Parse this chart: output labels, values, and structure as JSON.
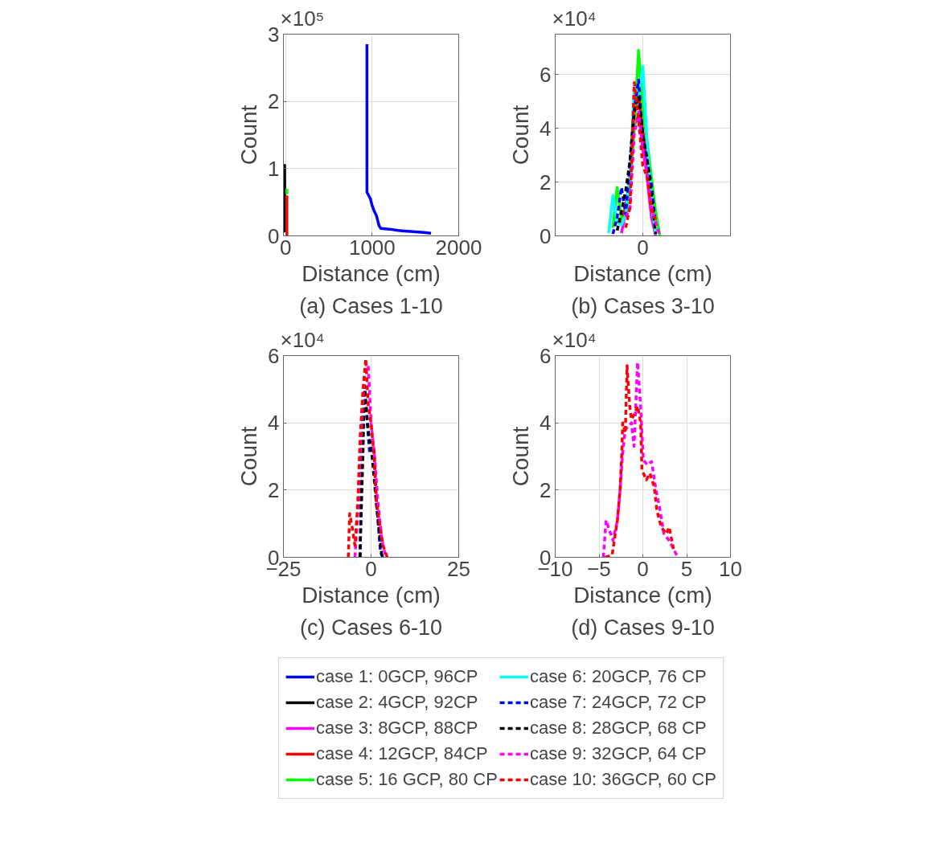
{
  "chart_data": [
    {
      "type": "line",
      "title": "(a) Cases 1-10",
      "xlabel": "Distance (cm)",
      "ylabel": "Count",
      "annotations": [
        "×10⁵"
      ],
      "xlim": [
        -25,
        2000
      ],
      "xticks": [
        0,
        1000,
        2000
      ],
      "ylim": [
        0,
        3
      ],
      "yticks": [
        0,
        1,
        2,
        3
      ],
      "grid": true,
      "legend": "bottom",
      "series": [
        {
          "name": "case 1: 0GCP, 96CP",
          "color": "#0000ff",
          "line_style": "solid",
          "x": [
            940,
            940,
            960,
            980,
            1000,
            1020,
            1050,
            1080,
            1100,
            1200,
            1300,
            1400,
            1500,
            1600,
            1680
          ],
          "values": [
            2.85,
            0.65,
            0.6,
            0.55,
            0.45,
            0.38,
            0.3,
            0.15,
            0.11,
            0.1,
            0.08,
            0.07,
            0.06,
            0.05,
            0.04
          ]
        },
        {
          "name": "case 2: 4GCP, 92CP",
          "color": "#000000",
          "line_style": "solid",
          "x": [
            -14,
            -13,
            -12,
            -11,
            -10
          ],
          "values": [
            0.05,
            0.65,
            0.2,
            1.05,
            0.6
          ]
        },
        {
          "name": "case 4: 12GCP, 84CP",
          "color": "#ff0000",
          "line_style": "solid",
          "x": [
            15,
            15
          ],
          "values": [
            0,
            0.6
          ]
        },
        {
          "name": "case 5: 16 GCP, 80 CP",
          "color": "#00ff00",
          "line_style": "solid",
          "x": [
            15,
            15
          ],
          "values": [
            0.62,
            0.7
          ]
        }
      ]
    },
    {
      "type": "line",
      "title": "(b) Cases 3-10",
      "xlabel": "Distance (cm)",
      "ylabel": "Count",
      "annotations": [
        "×10⁴"
      ],
      "categories": [
        null,
        null,
        null,
        null,
        null,
        null,
        null,
        null,
        null,
        null,
        null,
        null,
        null,
        null,
        null,
        null,
        null,
        null,
        null,
        null,
        "0",
        null,
        null,
        null,
        null,
        null,
        null,
        null,
        null,
        null,
        null,
        null,
        null,
        null,
        null,
        null,
        null,
        null,
        null,
        null,
        null
      ],
      "ylim": [
        0,
        7.5
      ],
      "yticks": [
        0,
        2,
        4,
        6
      ],
      "grid": true,
      "legend": "bottom",
      "series": [
        {
          "name": "case 3: 8GCP, 88CP",
          "color": "#ff00ff",
          "line_style": "solid",
          "values": [
            null,
            null,
            null,
            null,
            null,
            null,
            null,
            null,
            null,
            null,
            null,
            null,
            null,
            null,
            null,
            0.1,
            0.9,
            2.2,
            4.1,
            4.5,
            3.6,
            2.2,
            0.7,
            0,
            null,
            null,
            null,
            null,
            null,
            null,
            null,
            null,
            null,
            null,
            null,
            null,
            null,
            null,
            null,
            null,
            null
          ]
        },
        {
          "name": "case 4: 12GCP, 84CP",
          "color": "#ff0000",
          "line_style": "solid",
          "values": [
            null,
            null,
            null,
            null,
            null,
            null,
            null,
            null,
            null,
            null,
            null,
            null,
            null,
            null,
            0.6,
            0.5,
            1.1,
            2.2,
            4.6,
            5.3,
            3.9,
            2.9,
            1.3,
            0.1,
            null,
            null,
            null,
            null,
            null,
            null,
            null,
            null,
            null,
            null,
            null,
            null,
            null,
            null,
            null,
            null,
            null
          ]
        },
        {
          "name": "case 5: 16 GCP, 80 CP",
          "color": "#00ff00",
          "line_style": "solid",
          "values": [
            null,
            null,
            null,
            null,
            null,
            null,
            null,
            null,
            null,
            null,
            null,
            null,
            null,
            0.3,
            1.8,
            0.6,
            0.75,
            1.8,
            4.0,
            6.9,
            4.7,
            3.5,
            2.2,
            0.9,
            0,
            null,
            null,
            null,
            null,
            null,
            null,
            null,
            null,
            null,
            null,
            null,
            null,
            null,
            null,
            null,
            null
          ]
        },
        {
          "name": "case 6: 20GCP, 76 CP",
          "color": "#00ffff",
          "line_style": "solid",
          "values": [
            null,
            null,
            null,
            null,
            null,
            null,
            null,
            null,
            null,
            null,
            null,
            null,
            0.1,
            1.5,
            0.5,
            0.4,
            0.8,
            2.4,
            5.5,
            5.2,
            6.3,
            3.5,
            1.2,
            0.07,
            null,
            null,
            null,
            null,
            null,
            null,
            null,
            null,
            null,
            null,
            null,
            null,
            null,
            null,
            null,
            null,
            null
          ]
        },
        {
          "name": "case 7: 24GCP, 72 CP",
          "color": "#0000ff",
          "line_style": "dashed",
          "values": [
            null,
            null,
            null,
            null,
            null,
            null,
            null,
            null,
            null,
            null,
            null,
            null,
            null,
            0.07,
            0.7,
            1.8,
            0.8,
            2.8,
            4.7,
            5.8,
            3.6,
            2.8,
            1.9,
            0.4,
            null,
            null,
            null,
            null,
            null,
            null,
            null,
            null,
            null,
            null,
            null,
            null,
            null,
            null,
            null,
            null,
            null
          ]
        },
        {
          "name": "case 8: 28GCP, 68 CP",
          "color": "#000000",
          "line_style": "dashed",
          "values": [
            null,
            null,
            null,
            null,
            null,
            null,
            null,
            null,
            null,
            null,
            null,
            null,
            null,
            null,
            0.2,
            0.9,
            1.7,
            2.8,
            4.6,
            5.2,
            3.7,
            2.9,
            1.5,
            0.07,
            null,
            null,
            null,
            null,
            null,
            null,
            null,
            null,
            null,
            null,
            null,
            null,
            null,
            null,
            null,
            null,
            null
          ]
        },
        {
          "name": "case 9: 32GCP, 64 CP",
          "color": "#ff00ff",
          "line_style": "dashed",
          "values": [
            null,
            null,
            null,
            null,
            null,
            null,
            null,
            null,
            null,
            null,
            null,
            null,
            null,
            null,
            null,
            null,
            0.7,
            1.0,
            3.8,
            4.6,
            3.2,
            2.3,
            1.1,
            0.5,
            0,
            null,
            null,
            null,
            null,
            null,
            null,
            null,
            null,
            null,
            null,
            null,
            null,
            null,
            null,
            null,
            null
          ]
        },
        {
          "name": "case 10: 36GCP, 60 CP",
          "color": "#ff0000",
          "line_style": "dashed",
          "values": [
            null,
            null,
            null,
            null,
            null,
            null,
            null,
            null,
            null,
            null,
            null,
            null,
            null,
            null,
            null,
            null,
            0.3,
            1.1,
            5.7,
            4.3,
            2.6,
            2.2,
            1.0,
            0.6,
            null,
            null,
            null,
            null,
            null,
            null,
            null,
            null,
            null,
            null,
            null,
            null,
            null,
            null,
            null,
            null,
            null
          ]
        }
      ]
    },
    {
      "type": "line",
      "title": "(c) Cases 6-10",
      "xlabel": "Distance (cm)",
      "ylabel": "Count",
      "annotations": [
        "×10⁴"
      ],
      "xlim": [
        -25,
        25
      ],
      "xticks": [
        -25,
        0,
        25
      ],
      "ylim": [
        0,
        6
      ],
      "yticks": [
        0,
        2,
        4,
        6
      ],
      "grid": true,
      "series": [
        {
          "color": "#0000ff",
          "line_style": "dashed",
          "x": [
            -3.1,
            -2.7,
            -1.9,
            -1.1,
            -0.4,
            0.8,
            1.5,
            2.7,
            3.4
          ],
          "values": [
            0,
            3.1,
            5.1,
            4.0,
            3.1,
            3.3,
            1.7,
            0.15,
            0
          ]
        },
        {
          "color": "#000000",
          "line_style": "dashed",
          "x": [
            -3.2,
            -2.3,
            -1.9,
            -0.8,
            0.4,
            1.5,
            3.1
          ],
          "values": [
            0,
            3.1,
            5.1,
            3.8,
            2.9,
            1.6,
            0
          ]
        },
        {
          "color": "#ff00ff",
          "line_style": "dashed",
          "x": [
            -4.6,
            -3.8,
            -2.7,
            -1.9,
            -0.8,
            0,
            1.1,
            1.9,
            3.1,
            4.2
          ],
          "values": [
            0,
            1.3,
            4.0,
            5.4,
            5.7,
            4.0,
            2.9,
            1.7,
            0.5,
            0
          ]
        },
        {
          "color": "#ff0000",
          "line_style": "dashed",
          "x": [
            -6.5,
            -6.1,
            -5.4,
            -4.6,
            -3.8,
            -3.1,
            -2.3,
            -1.5,
            -0.8,
            0,
            0.8,
            1.5,
            2.3,
            3.4,
            4.6
          ],
          "values": [
            0,
            1.3,
            0.9,
            0.35,
            1.6,
            3.6,
            5.0,
            5.9,
            4.5,
            4.0,
            3.1,
            1.7,
            1.1,
            0.35,
            0
          ]
        }
      ]
    },
    {
      "type": "line",
      "title": "(d) Cases 9-10",
      "xlabel": "Distance (cm)",
      "ylabel": "Count",
      "annotations": [
        "×10⁴"
      ],
      "xlim": [
        -10,
        10
      ],
      "xticks": [
        -10,
        -5,
        0,
        5,
        10
      ],
      "ylim": [
        0,
        6
      ],
      "yticks": [
        0,
        2,
        4,
        6
      ],
      "grid": true,
      "series": [
        {
          "color": "#ff00ff",
          "line_style": "dashed",
          "x": [
            -4.5,
            -4.2,
            -3.8,
            -3.4,
            -2.9,
            -2.6,
            -2.3,
            -2.0,
            -1.3,
            -1.0,
            -0.7,
            -0.6,
            -0.25,
            0.06,
            0.5,
            1.0,
            1.5,
            1.9,
            2.4,
            3.0,
            3.7,
            4.0
          ],
          "values": [
            0,
            1.1,
            0.8,
            0.5,
            1.1,
            2.0,
            3.1,
            3.8,
            4.0,
            3.3,
            5.2,
            5.8,
            4.5,
            2.9,
            2.75,
            2.85,
            2.0,
            1.5,
            0.7,
            0.5,
            0.15,
            0
          ]
        },
        {
          "color": "#ff0000",
          "line_style": "dashed",
          "x": [
            -4.3,
            -3.5,
            -3.2,
            -2.9,
            -2.6,
            -2.4,
            -2.3,
            -2.0,
            -1.8,
            -1.5,
            -1.3,
            -0.9,
            -0.6,
            -0.25,
            -0.1,
            0.4,
            0.8,
            1.3,
            1.6,
            2.1,
            2.7,
            3.0,
            3.5
          ],
          "values": [
            0,
            0.07,
            0.6,
            1.1,
            2.0,
            3.1,
            4.0,
            3.7,
            5.7,
            4.5,
            4.1,
            4.3,
            4.5,
            4.0,
            2.6,
            2.3,
            2.5,
            2.1,
            1.4,
            0.9,
            0.7,
            0.9,
            0.25
          ]
        }
      ]
    }
  ]
}
